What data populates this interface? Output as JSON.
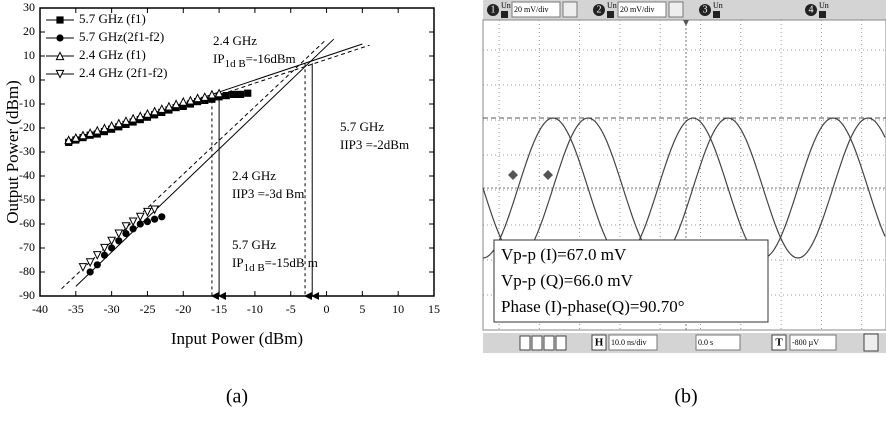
{
  "chart_data": {
    "type": "scatter",
    "xlabel": "Input Power (dBm)",
    "ylabel": "Output Power (dBm)",
    "xlim": [
      -40,
      15
    ],
    "xticks": [
      -40,
      -35,
      -30,
      -25,
      -20,
      -15,
      -10,
      -5,
      0,
      5,
      10,
      15
    ],
    "ylim": [
      -90,
      30
    ],
    "yticks": [
      -90,
      -80,
      -70,
      -60,
      -50,
      -40,
      -30,
      -20,
      -10,
      0,
      10,
      20,
      30
    ],
    "legend": "upper left",
    "series": [
      {
        "name": "5.7 GHz (f1)",
        "marker": "square",
        "color": "#000000",
        "x": [
          -36,
          -35,
          -34,
          -33,
          -32,
          -31,
          -30,
          -29,
          -28,
          -27,
          -26,
          -25,
          -24,
          -23,
          -22,
          -21,
          -20,
          -19,
          -18,
          -17,
          -16,
          -15,
          -14,
          -13,
          -12,
          -11
        ],
        "values": [
          -26,
          -25,
          -24,
          -23,
          -22.5,
          -21.5,
          -20.5,
          -19.5,
          -18.5,
          -17.5,
          -16.5,
          -15.5,
          -14.5,
          -13.5,
          -12.5,
          -11.5,
          -11,
          -10,
          -9,
          -8.5,
          -8,
          -7,
          -6.5,
          -6,
          -6,
          -5.5
        ]
      },
      {
        "name": "5.7 GHz(2f1-f2)",
        "marker": "circle",
        "color": "#000000",
        "x": [
          -33,
          -32,
          -31,
          -30,
          -29,
          -28,
          -27,
          -26,
          -25,
          -24,
          -23
        ],
        "values": [
          -80,
          -77,
          -73,
          -70,
          -67,
          -64,
          -62,
          -60,
          -59,
          -58,
          -57
        ]
      },
      {
        "name": "2.4 GHz (f1)",
        "marker": "triangle-up",
        "color": "#000000",
        "x": [
          -36,
          -35,
          -34,
          -33,
          -32,
          -31,
          -30,
          -29,
          -28,
          -27,
          -26,
          -25,
          -24,
          -23,
          -22,
          -21,
          -20,
          -19,
          -18,
          -17,
          -16,
          -15
        ],
        "values": [
          -25,
          -24,
          -23,
          -22,
          -21,
          -20,
          -19,
          -18,
          -17,
          -16,
          -15,
          -14,
          -13,
          -12,
          -11,
          -10,
          -9,
          -8.5,
          -7.5,
          -7,
          -6,
          -5.5
        ]
      },
      {
        "name": "2.4 GHz (2f1-f2)",
        "marker": "triangle-down",
        "color": "#000000",
        "x": [
          -34,
          -33,
          -32,
          -31,
          -30,
          -29,
          -28,
          -27,
          -26,
          -25,
          -24
        ],
        "values": [
          -78,
          -76,
          -73,
          -70,
          -67,
          -64,
          -61,
          -59,
          -57,
          -55,
          -54
        ]
      }
    ],
    "fit_lines": [
      {
        "x": [
          -36,
          5
        ],
        "y": [
          -26,
          15
        ],
        "dashed": false
      },
      {
        "x": [
          -36,
          6
        ],
        "y": [
          -27,
          14.5
        ],
        "dashed": true
      },
      {
        "x": [
          -35,
          1
        ],
        "y": [
          -86,
          17
        ],
        "dashed": false
      },
      {
        "x": [
          -37,
          0
        ],
        "y": [
          -87,
          17
        ],
        "dashed": true
      }
    ],
    "arrows": [
      {
        "x": -16,
        "y": [
          -6,
          -90
        ],
        "dashed": true
      },
      {
        "x": -15,
        "y": [
          -6,
          -90
        ],
        "dashed": false
      },
      {
        "x": -3,
        "y": [
          7,
          -90
        ],
        "dashed": true
      },
      {
        "x": -2,
        "y": [
          7,
          -90
        ],
        "dashed": false
      }
    ],
    "annotations": [
      {
        "title": "2.4 GHz",
        "parts": [
          "IP",
          "1d B",
          "=-16dBm"
        ]
      },
      {
        "title": "5.7  GHz",
        "parts": [
          "IIP3 =-2dBm"
        ]
      },
      {
        "title": "2.4  GHz",
        "parts": [
          "IIP3 =-3d Bm"
        ]
      },
      {
        "title": "5.7 GHz",
        "parts": [
          "IP",
          "1d B",
          "=-15dB m"
        ]
      }
    ]
  },
  "scope": {
    "channels": [
      {
        "number": "1",
        "coupling": "Un",
        "label": "20 mV/div"
      },
      {
        "number": "2",
        "coupling": "Un",
        "label": "20 mV/div"
      },
      {
        "number": "3",
        "coupling": "Un"
      },
      {
        "number": "4",
        "coupling": "Un"
      }
    ],
    "measurements": [
      "Vp-p (I)=67.0 mV",
      "Vp-p (Q)=66.0 mV",
      "Phase (I)-phase(Q)=90.70°"
    ],
    "h_label": "H",
    "timebase": "10.0 ns/div",
    "delay": "0.0 s",
    "t_label": "T",
    "trigger": "-800 µV"
  },
  "captions": [
    "(a)",
    "(b)"
  ]
}
